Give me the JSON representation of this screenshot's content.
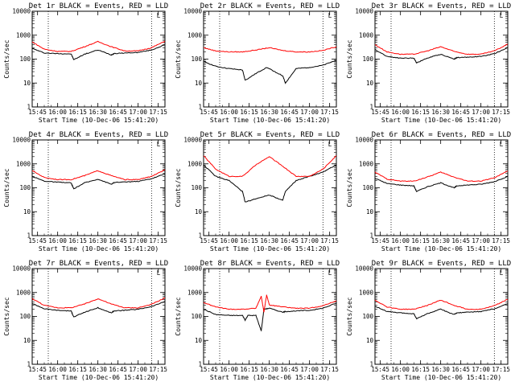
{
  "chart_data": [
    {
      "type": "line",
      "title": "Det 1r BLACK = Events, RED = LLD",
      "xlabel": "Start Time (10-Dec-06 15:41:20)",
      "ylabel": "Counts/sec",
      "y_scale": "log",
      "ylim": [
        1,
        10000
      ],
      "y_ticks": [
        "1",
        "10",
        "100",
        "1000",
        "10000"
      ],
      "x_ticks": [
        "15:45",
        "16:00",
        "16:15",
        "16:30",
        "16:45",
        "17:00",
        "17:15"
      ],
      "x_hours": [
        15.75,
        16.0,
        16.25,
        16.5,
        16.75,
        17.0,
        17.25
      ],
      "xlim": [
        "15:41",
        "17:20"
      ],
      "dotted_x": [
        "15:53",
        "17:10"
      ],
      "corner_label": "L",
      "series": [
        {
          "name": "BLACK = Events",
          "color": "#000000",
          "x": [
            "15:41",
            "15:50",
            "16:00",
            "16:10",
            "16:12",
            "16:20",
            "16:30",
            "16:40",
            "16:42",
            "16:50",
            "17:00",
            "17:10",
            "17:20"
          ],
          "y": [
            280,
            180,
            170,
            165,
            95,
            160,
            240,
            150,
            170,
            180,
            190,
            240,
            400
          ]
        },
        {
          "name": "RED = LLD",
          "color": "#ff0000",
          "x": [
            "15:41",
            "15:50",
            "16:00",
            "16:10",
            "16:20",
            "16:30",
            "16:40",
            "16:50",
            "17:00",
            "17:10",
            "17:20"
          ],
          "y": [
            520,
            260,
            210,
            210,
            330,
            540,
            330,
            220,
            220,
            300,
            560
          ]
        }
      ]
    },
    {
      "type": "line",
      "title": "Det 2r BLACK = Events, RED = LLD",
      "xlabel": "Start Time (10-Dec-06 15:41:20)",
      "ylabel": "Counts/sec",
      "y_scale": "log",
      "ylim": [
        1,
        10000
      ],
      "y_ticks": [
        "1",
        "10",
        "100",
        "1000",
        "10000"
      ],
      "x_ticks": [
        "15:45",
        "16:00",
        "16:15",
        "16:30",
        "16:45",
        "17:00",
        "17:15"
      ],
      "x_hours": [
        15.75,
        16.0,
        16.25,
        16.5,
        16.75,
        17.0,
        17.25
      ],
      "xlim": [
        "15:41",
        "17:20"
      ],
      "dotted_x": [
        "15:53",
        "17:10"
      ],
      "corner_label": "L",
      "series": [
        {
          "name": "BLACK = Events",
          "color": "#000000",
          "x": [
            "15:41",
            "15:50",
            "16:00",
            "16:10",
            "16:12",
            "16:20",
            "16:28",
            "16:40",
            "16:42",
            "16:50",
            "17:00",
            "17:10",
            "17:20"
          ],
          "y": [
            80,
            50,
            40,
            35,
            13,
            25,
            45,
            20,
            10,
            40,
            45,
            55,
            90
          ]
        },
        {
          "name": "RED = LLD",
          "color": "#ff0000",
          "x": [
            "15:41",
            "15:50",
            "16:00",
            "16:10",
            "16:20",
            "16:30",
            "16:40",
            "16:50",
            "17:00",
            "17:10",
            "17:20"
          ],
          "y": [
            300,
            220,
            200,
            200,
            240,
            300,
            230,
            200,
            200,
            230,
            330
          ]
        }
      ]
    },
    {
      "type": "line",
      "title": "Det 3r BLACK = Events, RED = LLD",
      "xlabel": "Start Time (10-Dec-06 15:41:20)",
      "ylabel": "Counts/sec",
      "y_scale": "log",
      "ylim": [
        1,
        10000
      ],
      "y_ticks": [
        "1",
        "10",
        "100",
        "1000",
        "10000"
      ],
      "x_ticks": [
        "15:45",
        "16:00",
        "16:15",
        "16:30",
        "16:45",
        "17:00",
        "17:15"
      ],
      "x_hours": [
        15.75,
        16.0,
        16.25,
        16.5,
        16.75,
        17.0,
        17.25
      ],
      "xlim": [
        "15:41",
        "17:20"
      ],
      "dotted_x": [
        "15:53",
        "17:10"
      ],
      "corner_label": "L",
      "series": [
        {
          "name": "BLACK = Events",
          "color": "#000000",
          "x": [
            "15:41",
            "15:50",
            "16:00",
            "16:10",
            "16:12",
            "16:20",
            "16:30",
            "16:40",
            "16:42",
            "16:50",
            "17:00",
            "17:10",
            "17:20"
          ],
          "y": [
            250,
            130,
            110,
            110,
            70,
            110,
            160,
            100,
            115,
            120,
            130,
            170,
            300
          ]
        },
        {
          "name": "RED = LLD",
          "color": "#ff0000",
          "x": [
            "15:41",
            "15:50",
            "16:00",
            "16:10",
            "16:20",
            "16:30",
            "16:40",
            "16:50",
            "17:00",
            "17:10",
            "17:20"
          ],
          "y": [
            400,
            200,
            160,
            160,
            220,
            330,
            210,
            160,
            160,
            220,
            420
          ]
        }
      ]
    },
    {
      "type": "line",
      "title": "Det 4r BLACK = Events, RED = LLD",
      "xlabel": "Start Time (10-Dec-06 15:41:20)",
      "ylabel": "Counts/sec",
      "y_scale": "log",
      "ylim": [
        1,
        10000
      ],
      "y_ticks": [
        "1",
        "10",
        "100",
        "1000",
        "10000"
      ],
      "x_ticks": [
        "15:45",
        "16:00",
        "16:15",
        "16:30",
        "16:45",
        "17:00",
        "17:15"
      ],
      "x_hours": [
        15.75,
        16.0,
        16.25,
        16.5,
        16.75,
        17.0,
        17.25
      ],
      "xlim": [
        "15:41",
        "17:20"
      ],
      "dotted_x": [
        "15:53",
        "17:10"
      ],
      "corner_label": "L",
      "series": [
        {
          "name": "BLACK = Events",
          "color": "#000000",
          "x": [
            "15:41",
            "15:50",
            "16:00",
            "16:10",
            "16:12",
            "16:20",
            "16:30",
            "16:40",
            "16:42",
            "16:50",
            "17:00",
            "17:10",
            "17:20"
          ],
          "y": [
            300,
            190,
            170,
            160,
            90,
            160,
            230,
            140,
            165,
            175,
            185,
            240,
            380
          ]
        },
        {
          "name": "RED = LLD",
          "color": "#ff0000",
          "x": [
            "15:41",
            "15:50",
            "16:00",
            "16:10",
            "16:20",
            "16:30",
            "16:40",
            "16:50",
            "17:00",
            "17:10",
            "17:20"
          ],
          "y": [
            520,
            270,
            220,
            220,
            320,
            520,
            320,
            220,
            220,
            300,
            560
          ]
        }
      ]
    },
    {
      "type": "line",
      "title": "Det 5r BLACK = Events, RED = LLD",
      "xlabel": "Start Time (10-Dec-06 15:41:20)",
      "ylabel": "Counts/sec",
      "y_scale": "log",
      "ylim": [
        1,
        10000
      ],
      "y_ticks": [
        "1",
        "10",
        "100",
        "1000",
        "10000"
      ],
      "x_ticks": [
        "15:45",
        "16:00",
        "16:15",
        "16:30",
        "16:45",
        "17:00",
        "17:15"
      ],
      "x_hours": [
        15.75,
        16.0,
        16.25,
        16.5,
        16.75,
        17.0,
        17.25
      ],
      "xlim": [
        "15:41",
        "17:20"
      ],
      "dotted_x": [
        "15:53",
        "17:10"
      ],
      "corner_label": "L",
      "series": [
        {
          "name": "BLACK = Events",
          "color": "#000000",
          "x": [
            "15:41",
            "15:50",
            "16:00",
            "16:10",
            "16:12",
            "16:20",
            "16:30",
            "16:40",
            "16:42",
            "16:50",
            "17:00",
            "17:10",
            "17:20"
          ],
          "y": [
            900,
            300,
            200,
            70,
            25,
            35,
            50,
            30,
            70,
            200,
            300,
            450,
            900
          ]
        },
        {
          "name": "RED = LLD",
          "color": "#ff0000",
          "x": [
            "15:41",
            "15:50",
            "16:00",
            "16:10",
            "16:20",
            "16:30",
            "16:40",
            "16:50",
            "17:00",
            "17:10",
            "17:20"
          ],
          "y": [
            2200,
            600,
            300,
            300,
            900,
            2000,
            800,
            300,
            300,
            600,
            2200
          ]
        }
      ]
    },
    {
      "type": "line",
      "title": "Det 6r BLACK = Events, RED = LLD",
      "xlabel": "Start Time (10-Dec-06 15:41:20)",
      "ylabel": "Counts/sec",
      "y_scale": "log",
      "ylim": [
        1,
        10000
      ],
      "y_ticks": [
        "1",
        "10",
        "100",
        "1000",
        "10000"
      ],
      "x_ticks": [
        "15:45",
        "16:00",
        "16:15",
        "16:30",
        "16:45",
        "17:00",
        "17:15"
      ],
      "x_hours": [
        15.75,
        16.0,
        16.25,
        16.5,
        16.75,
        17.0,
        17.25
      ],
      "xlim": [
        "15:41",
        "17:20"
      ],
      "dotted_x": [
        "15:53",
        "17:10"
      ],
      "corner_label": "L",
      "series": [
        {
          "name": "BLACK = Events",
          "color": "#000000",
          "x": [
            "15:41",
            "15:50",
            "16:00",
            "16:10",
            "16:12",
            "16:20",
            "16:30",
            "16:40",
            "16:42",
            "16:50",
            "17:00",
            "17:10",
            "17:20"
          ],
          "y": [
            250,
            150,
            130,
            120,
            70,
            110,
            160,
            100,
            120,
            130,
            140,
            180,
            300
          ]
        },
        {
          "name": "RED = LLD",
          "color": "#ff0000",
          "x": [
            "15:41",
            "15:50",
            "16:00",
            "16:10",
            "16:20",
            "16:30",
            "16:40",
            "16:50",
            "17:00",
            "17:10",
            "17:20"
          ],
          "y": [
            450,
            230,
            190,
            190,
            280,
            450,
            280,
            190,
            190,
            260,
            500
          ]
        }
      ]
    },
    {
      "type": "line",
      "title": "Det 7r BLACK = Events, RED = LLD",
      "xlabel": "Start Time (10-Dec-06 15:41:20)",
      "ylabel": "Counts/sec",
      "y_scale": "log",
      "ylim": [
        1,
        10000
      ],
      "y_ticks": [
        "1",
        "10",
        "100",
        "1000",
        "10000"
      ],
      "x_ticks": [
        "15:45",
        "16:00",
        "16:15",
        "16:30",
        "16:45",
        "17:00",
        "17:15"
      ],
      "x_hours": [
        15.75,
        16.0,
        16.25,
        16.5,
        16.75,
        17.0,
        17.25
      ],
      "xlim": [
        "15:41",
        "17:20"
      ],
      "dotted_x": [
        "15:53",
        "17:10"
      ],
      "corner_label": "L",
      "series": [
        {
          "name": "BLACK = Events",
          "color": "#000000",
          "x": [
            "15:41",
            "15:50",
            "16:00",
            "16:10",
            "16:12",
            "16:20",
            "16:30",
            "16:40",
            "16:42",
            "16:50",
            "17:00",
            "17:10",
            "17:20"
          ],
          "y": [
            350,
            210,
            180,
            170,
            95,
            150,
            230,
            140,
            170,
            180,
            200,
            260,
            420
          ]
        },
        {
          "name": "RED = LLD",
          "color": "#ff0000",
          "x": [
            "15:41",
            "15:50",
            "16:00",
            "16:10",
            "16:20",
            "16:30",
            "16:40",
            "16:50",
            "17:00",
            "17:10",
            "17:20"
          ],
          "y": [
            560,
            290,
            230,
            230,
            330,
            550,
            330,
            230,
            230,
            320,
            600
          ]
        }
      ]
    },
    {
      "type": "line",
      "title": "Det 8r BLACK = Events, RED = LLD",
      "xlabel": "Start Time (10-Dec-06 15:41:20)",
      "ylabel": "Counts/sec",
      "y_scale": "log",
      "ylim": [
        1,
        10000
      ],
      "y_ticks": [
        "1",
        "10",
        "100",
        "1000",
        "10000"
      ],
      "x_ticks": [
        "15:45",
        "16:00",
        "16:15",
        "16:30",
        "16:45",
        "17:00",
        "17:15"
      ],
      "x_hours": [
        15.75,
        16.0,
        16.25,
        16.5,
        16.75,
        17.0,
        17.25
      ],
      "xlim": [
        "15:41",
        "17:20"
      ],
      "dotted_x": [
        "15:53",
        "17:10"
      ],
      "corner_label": "L",
      "series": [
        {
          "name": "BLACK = Events",
          "color": "#000000",
          "x": [
            "15:41",
            "15:50",
            "16:00",
            "16:10",
            "16:12",
            "16:14",
            "16:20",
            "16:24",
            "16:26",
            "16:30",
            "16:40",
            "16:42",
            "16:50",
            "17:00",
            "17:10",
            "17:20"
          ],
          "y": [
            200,
            120,
            110,
            110,
            70,
            110,
            110,
            25,
            200,
            220,
            150,
            160,
            170,
            180,
            220,
            360
          ]
        },
        {
          "name": "RED = LLD",
          "color": "#ff0000",
          "x": [
            "15:41",
            "15:50",
            "16:00",
            "16:10",
            "16:20",
            "16:24",
            "16:26",
            "16:28",
            "16:30",
            "16:40",
            "16:50",
            "17:00",
            "17:10",
            "17:20"
          ],
          "y": [
            380,
            250,
            200,
            200,
            220,
            700,
            150,
            800,
            300,
            250,
            220,
            220,
            280,
            450
          ]
        }
      ]
    },
    {
      "type": "line",
      "title": "Det 9r BLACK = Events, RED = LLD",
      "xlabel": "Start Time (10-Dec-06 15:41:20)",
      "ylabel": "Counts/sec",
      "y_scale": "log",
      "ylim": [
        1,
        10000
      ],
      "y_ticks": [
        "1",
        "10",
        "100",
        "1000",
        "10000"
      ],
      "x_ticks": [
        "15:45",
        "16:00",
        "16:15",
        "16:30",
        "16:45",
        "17:00",
        "17:15"
      ],
      "x_hours": [
        15.75,
        16.0,
        16.25,
        16.5,
        16.75,
        17.0,
        17.25
      ],
      "xlim": [
        "15:41",
        "17:20"
      ],
      "dotted_x": [
        "15:53",
        "17:10"
      ],
      "corner_label": "L",
      "series": [
        {
          "name": "BLACK = Events",
          "color": "#000000",
          "x": [
            "15:41",
            "15:50",
            "16:00",
            "16:10",
            "16:12",
            "16:20",
            "16:30",
            "16:40",
            "16:42",
            "16:50",
            "17:00",
            "17:10",
            "17:20"
          ],
          "y": [
            270,
            160,
            140,
            130,
            80,
            130,
            200,
            120,
            140,
            150,
            160,
            210,
            340
          ]
        },
        {
          "name": "RED = LLD",
          "color": "#ff0000",
          "x": [
            "15:41",
            "15:50",
            "16:00",
            "16:10",
            "16:20",
            "16:30",
            "16:40",
            "16:50",
            "17:00",
            "17:10",
            "17:20"
          ],
          "y": [
            480,
            250,
            200,
            200,
            290,
            480,
            290,
            200,
            200,
            280,
            520
          ]
        }
      ]
    }
  ]
}
